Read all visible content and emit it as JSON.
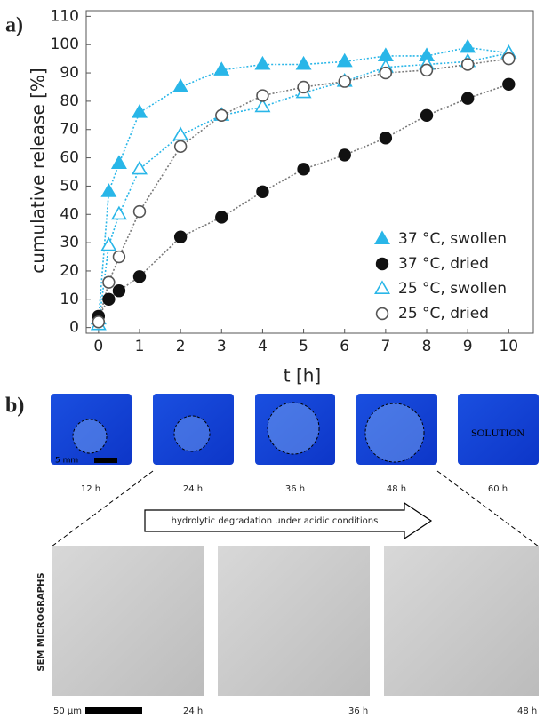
{
  "chart_data": {
    "type": "line",
    "panel_label": "a)",
    "x_label": "t [h]",
    "y_label": "cumulative release [%]",
    "x": [
      0,
      0.25,
      0.5,
      1,
      2,
      3,
      4,
      5,
      6,
      7,
      8,
      9,
      10
    ],
    "series": [
      {
        "name": "37 °C, swollen",
        "color": "#29b6e8",
        "line_color": "#29b6e8",
        "marker": "triangle",
        "filled": true,
        "values": [
          3,
          48,
          58,
          76,
          85,
          91,
          93,
          93,
          94,
          96,
          96,
          99,
          97
        ]
      },
      {
        "name": "37 °C, dried",
        "color": "#111111",
        "line_color": "#7a7a7a",
        "marker": "circle",
        "filled": true,
        "values": [
          4,
          10,
          13,
          18,
          32,
          39,
          48,
          56,
          61,
          67,
          75,
          81,
          86
        ]
      },
      {
        "name": "25 °C, swollen",
        "color": "#29b6e8",
        "line_color": "#29b6e8",
        "marker": "triangle",
        "filled": false,
        "values": [
          1,
          29,
          40,
          56,
          68,
          75,
          78,
          83,
          87,
          92,
          93,
          94,
          97
        ]
      },
      {
        "name": "25 °C, dried",
        "color": "#555555",
        "line_color": "#7a7a7a",
        "marker": "circle",
        "filled": false,
        "values": [
          2,
          16,
          25,
          41,
          64,
          75,
          82,
          85,
          87,
          90,
          91,
          93,
          95
        ]
      }
    ],
    "xlim": [
      -0.3,
      10.6
    ],
    "xticks": [
      0,
      1,
      2,
      3,
      4,
      5,
      6,
      7,
      8,
      9,
      10
    ],
    "ylim": [
      -2,
      112
    ],
    "yticks": [
      0,
      10,
      20,
      30,
      40,
      50,
      60,
      70,
      80,
      90,
      100,
      110
    ],
    "grid": false,
    "legend": "lower right"
  },
  "panel_b": {
    "label": "b)",
    "photo_times": [
      "12 h",
      "24 h",
      "36 h",
      "48 h",
      "60 h"
    ],
    "scale_bar": "5 mm",
    "solution": "SOLUTION",
    "arrow": "hydrolytic degradation under acidic conditions",
    "sem_title": "SEM MICROGRAPHS",
    "sem_scale": "50 µm",
    "sem_times": [
      "24 h",
      "36 h",
      "48 h"
    ]
  }
}
